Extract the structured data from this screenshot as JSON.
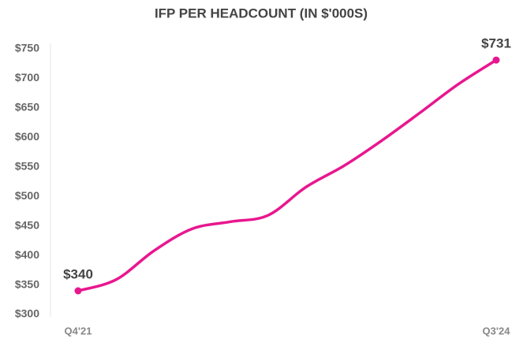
{
  "chart_data": {
    "type": "line",
    "title": "IFP PER HEADCOUNT (IN $'000S)",
    "categories": [
      "Q4'21",
      null,
      null,
      null,
      null,
      null,
      null,
      null,
      null,
      null,
      null,
      "Q3'24"
    ],
    "series": [
      {
        "name": null,
        "color": "#e8178f",
        "values": [
          340,
          359,
          408,
          445,
          457,
          468,
          516,
          552,
          595,
          642,
          690,
          731
        ],
        "value_labels": [
          "$340",
          null,
          null,
          null,
          null,
          null,
          null,
          null,
          null,
          null,
          null,
          "$731"
        ]
      }
    ],
    "ylim": [
      300,
      750
    ],
    "yticks": [
      {
        "value": 300,
        "label": "$300"
      },
      {
        "value": 350,
        "label": "$350"
      },
      {
        "value": 400,
        "label": "$400"
      },
      {
        "value": 450,
        "label": "$450"
      },
      {
        "value": 500,
        "label": "$500"
      },
      {
        "value": 550,
        "label": "$550"
      },
      {
        "value": 600,
        "label": "$600"
      },
      {
        "value": 650,
        "label": "$650"
      },
      {
        "value": 700,
        "label": "$700"
      },
      {
        "value": 750,
        "label": "$750"
      }
    ],
    "grid": false
  }
}
